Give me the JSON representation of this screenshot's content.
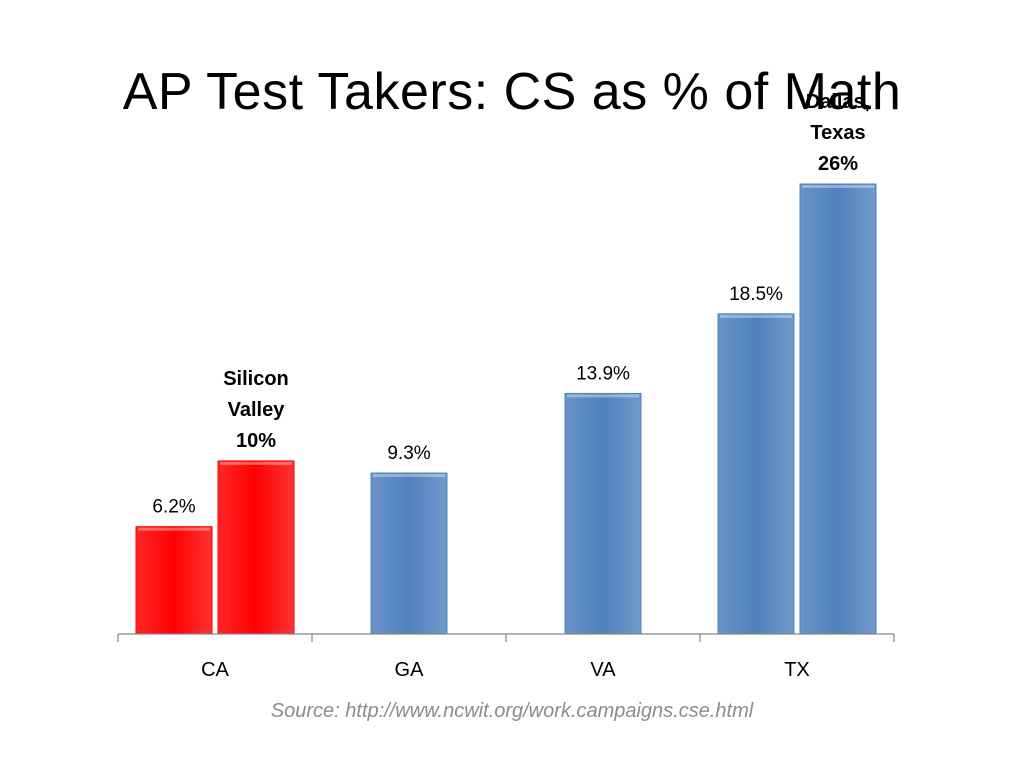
{
  "title": "AP Test Takers: CS as % of Math",
  "source": "Source: http://www.ncwit.org/work.campaigns.cse.html",
  "chart_data": {
    "type": "bar",
    "title": "AP Test Takers: CS as % of Math",
    "xlabel": "",
    "ylabel": "",
    "ylim": [
      0,
      26
    ],
    "grid": false,
    "categories": [
      "CA",
      "GA",
      "VA",
      "TX"
    ],
    "bars": [
      {
        "category": "CA",
        "value": 6.2,
        "label": "6.2%",
        "color": "#ff0000",
        "bold": false
      },
      {
        "category": "CA",
        "value": 10,
        "label": "Silicon Valley 10%",
        "label_lines": [
          "Silicon",
          "Valley",
          "10%"
        ],
        "color": "#ff0000",
        "bold": true
      },
      {
        "category": "GA",
        "value": 9.3,
        "label": "9.3%",
        "color": "#4f81bd",
        "bold": false
      },
      {
        "category": "VA",
        "value": 13.9,
        "label": "13.9%",
        "color": "#4f81bd",
        "bold": false
      },
      {
        "category": "TX",
        "value": 18.5,
        "label": "18.5%",
        "color": "#4f81bd",
        "bold": false
      },
      {
        "category": "TX",
        "value": 26,
        "label": "Dallas, Texas 26%",
        "label_lines": [
          "Dallas,",
          "Texas",
          "26%"
        ],
        "color": "#4f81bd",
        "bold": true
      }
    ]
  }
}
